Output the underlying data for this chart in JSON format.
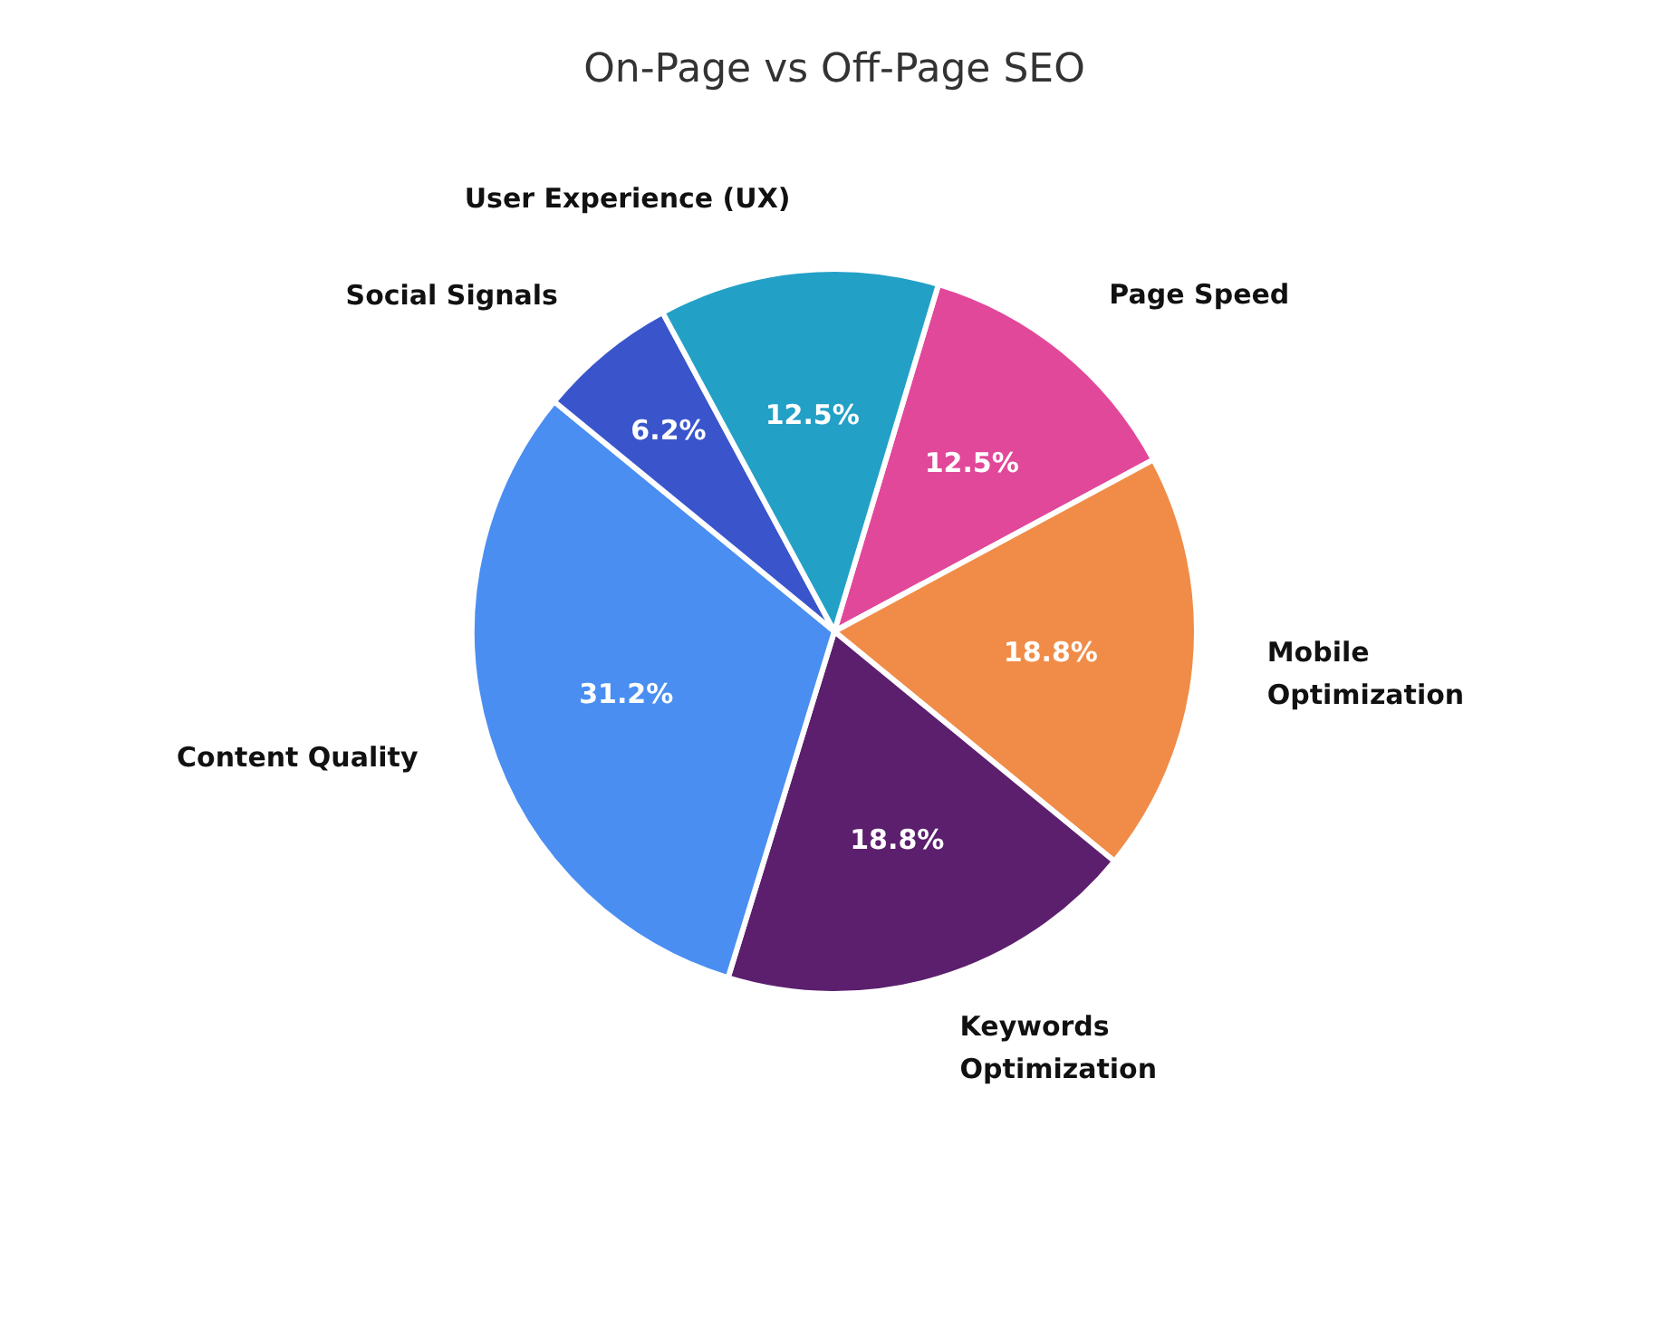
{
  "chart_data": {
    "type": "pie",
    "title": "On-Page vs Off-Page SEO",
    "categories": [
      "Page Speed",
      "Mobile Optimization",
      "Keywords Optimization",
      "Content Quality",
      "Social Signals",
      "User Experience (UX)"
    ],
    "values": [
      12.5,
      18.8,
      18.8,
      31.2,
      6.2,
      12.5
    ],
    "value_labels": [
      "12.5%",
      "18.8%",
      "18.8%",
      "31.2%",
      "6.2%",
      "12.5%"
    ],
    "colors": [
      "#e2489a",
      "#f08c48",
      "#5c1f6e",
      "#4a8ef2",
      "#3a55cc",
      "#23a0c6"
    ]
  }
}
